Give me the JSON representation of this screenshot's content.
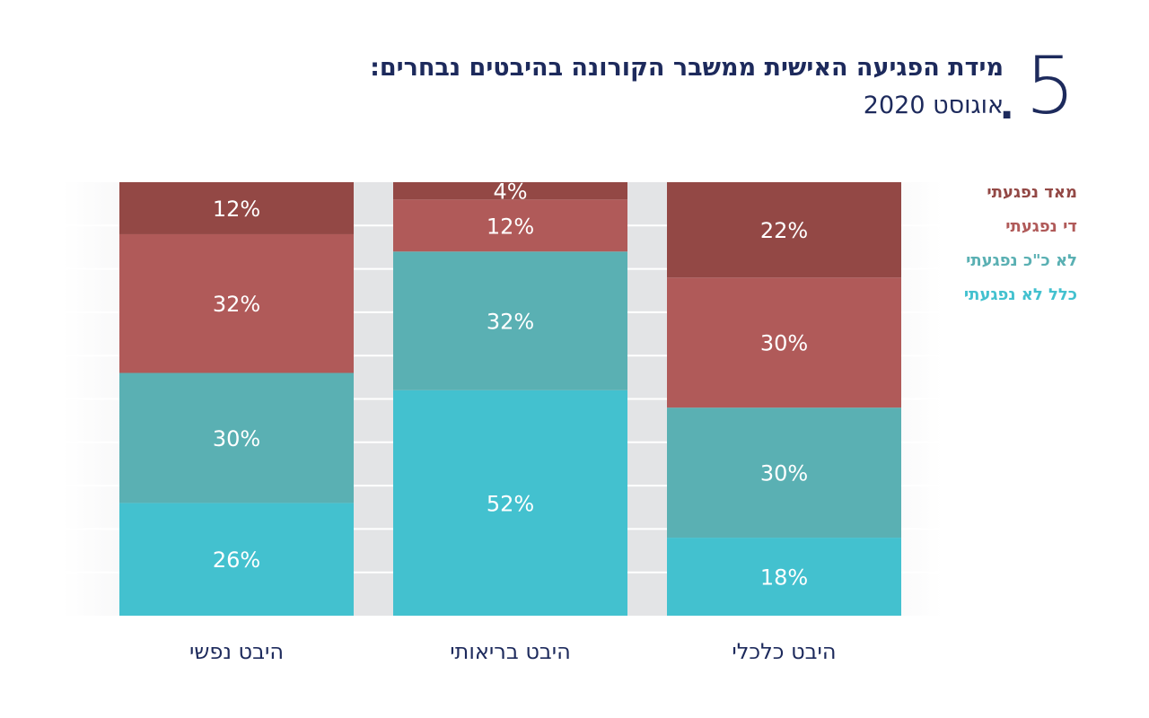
{
  "header": {
    "number": "5",
    "dot": ".",
    "title": "מידת הפגיעה האישית ממשבר הקורונה בהיבטים נבחרים:",
    "subtitle": "אוגוסט 2020"
  },
  "legend": [
    {
      "label": "מאד נפגעתי",
      "color": "#934845"
    },
    {
      "label": "די נפגעתי",
      "color": "#b05a59"
    },
    {
      "label": "לא כ\"כ נפגעתי",
      "color": "#5ab0b3"
    },
    {
      "label": "כלל לא נפגעתי",
      "color": "#43c1cf"
    }
  ],
  "chart_data": {
    "type": "bar",
    "stacked": true,
    "normalized": true,
    "categories": [
      "היבט נפשי",
      "היבט בריאותי",
      "היבט כלכלי"
    ],
    "series": [
      {
        "name": "כלל לא נפגעתי",
        "color": "#43c1cf",
        "values": [
          26,
          52,
          18
        ],
        "labels": [
          "26%",
          "52%",
          "18%"
        ]
      },
      {
        "name": "לא כ\"כ נפגעתי",
        "color": "#5ab0b3",
        "values": [
          30,
          32,
          30
        ],
        "labels": [
          "30%",
          "32%",
          "30%"
        ]
      },
      {
        "name": "די נפגעתי",
        "color": "#b05a59",
        "values": [
          32,
          12,
          30
        ],
        "labels": [
          "32%",
          "12%",
          "30%"
        ]
      },
      {
        "name": "מאד נפגעתי",
        "color": "#934845",
        "values": [
          12,
          4,
          22
        ],
        "labels": [
          "12%",
          "4%",
          "22%"
        ]
      }
    ],
    "ylim": [
      0,
      100
    ],
    "legend_position": "top-right",
    "grid": true
  }
}
